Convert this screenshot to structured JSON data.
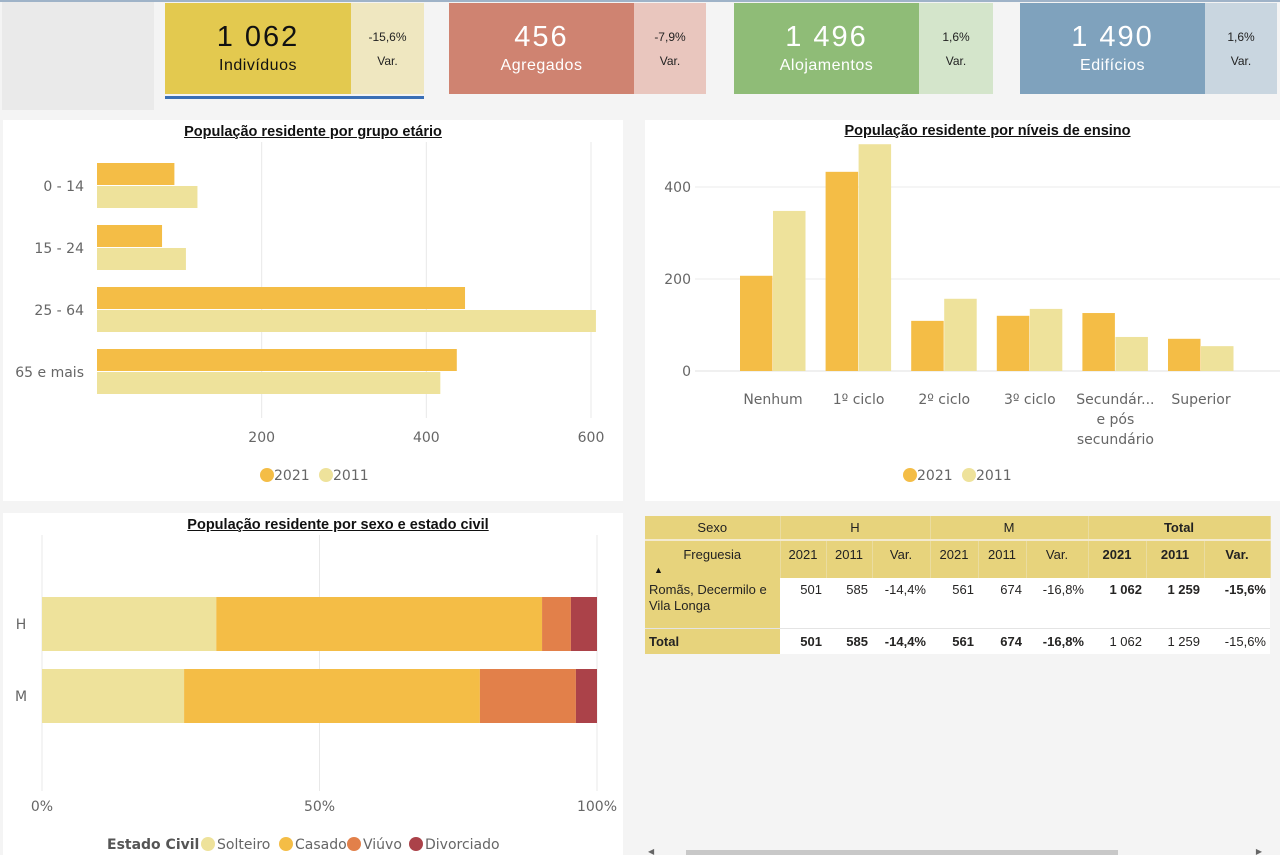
{
  "kpis": [
    {
      "id": "individuos",
      "value": "1 062",
      "label": "Indivíduos",
      "variation": "-15,6%",
      "variation_label": "Var."
    },
    {
      "id": "agregados",
      "value": "456",
      "label": "Agregados",
      "variation": "-7,9%",
      "variation_label": "Var."
    },
    {
      "id": "alojamentos",
      "value": "1 496",
      "label": "Alojamentos",
      "variation": "1,6%",
      "variation_label": "Var."
    },
    {
      "id": "edificios",
      "value": "1 490",
      "label": "Edifícios",
      "variation": "1,6%",
      "variation_label": "Var."
    }
  ],
  "colors": {
    "series_2021": "#f4bd46",
    "series_2011": "#eee29b",
    "solteiro": "#eee29b",
    "casado": "#f4bd46",
    "viuvo": "#e2804a",
    "divorciado": "#ab4249",
    "table_header": "#e7d37c",
    "selected_underline": "#3a6fb5"
  },
  "chart_data": [
    {
      "id": "age-chart",
      "type": "bar",
      "orientation": "horizontal",
      "title": "População residente por grupo etário",
      "categories": [
        "0 - 14",
        "15 - 24",
        "25 - 64",
        "65 e mais"
      ],
      "series": [
        {
          "name": "2021",
          "values": [
            94,
            79,
            447,
            437
          ]
        },
        {
          "name": "2011",
          "values": [
            122,
            108,
            606,
            417
          ]
        }
      ],
      "xlabel": "",
      "ylabel": "",
      "xlim": [
        0,
        600
      ],
      "xticks": [
        200,
        400,
        600
      ],
      "grid": true,
      "legend": "bottom-center"
    },
    {
      "id": "education-chart",
      "type": "bar",
      "orientation": "vertical",
      "title": "População residente por níveis de ensino",
      "categories": [
        "Nenhum",
        "1º ciclo",
        "2º ciclo",
        "3º ciclo",
        "Secundár... e pós secundário",
        "Superior"
      ],
      "category_lines": [
        [
          "Nenhum"
        ],
        [
          "1º ciclo"
        ],
        [
          "2º ciclo"
        ],
        [
          "3º ciclo"
        ],
        [
          "Secundár...",
          "e pós",
          "secundário"
        ],
        [
          "Superior"
        ]
      ],
      "series": [
        {
          "name": "2021",
          "values": [
            207,
            433,
            109,
            120,
            126,
            70
          ]
        },
        {
          "name": "2011",
          "values": [
            348,
            493,
            157,
            135,
            74,
            54
          ]
        }
      ],
      "xlabel": "",
      "ylabel": "",
      "ylim": [
        0,
        500
      ],
      "yticks": [
        0,
        200,
        400
      ],
      "grid": true,
      "legend": "bottom-center"
    },
    {
      "id": "marital-chart",
      "type": "bar",
      "orientation": "horizontal",
      "stacked": "100%",
      "title": "População residente por sexo e estado civil",
      "categories": [
        "H",
        "M"
      ],
      "series": [
        {
          "name": "Solteiro",
          "values": [
            31.4,
            25.6
          ]
        },
        {
          "name": "Casado",
          "values": [
            58.7,
            53.3
          ]
        },
        {
          "name": "Viúvo",
          "values": [
            5.2,
            17.3
          ]
        },
        {
          "name": "Divorciado",
          "values": [
            4.7,
            3.8
          ]
        }
      ],
      "xlim": [
        0,
        100
      ],
      "xticks": [
        "0%",
        "50%",
        "100%"
      ],
      "legend_title": "Estado Civil",
      "grid": true,
      "legend": "bottom-left"
    }
  ],
  "table": {
    "group_header": {
      "label": "Sexo",
      "groups": [
        "H",
        "M",
        "Total"
      ]
    },
    "row_header_label": "Freguesia",
    "sub_headers": [
      "2021",
      "2011",
      "Var."
    ],
    "rows": [
      {
        "name": "Romãs, Decermilo e Vila Longa",
        "values": [
          "501",
          "585",
          "-14,4%",
          "561",
          "674",
          "-16,8%",
          "1 062",
          "1 259",
          "-15,6%"
        ]
      }
    ],
    "total": {
      "name": "Total",
      "values": [
        "501",
        "585",
        "-14,4%",
        "561",
        "674",
        "-16,8%",
        "1 062",
        "1 259",
        "-15,6%"
      ]
    }
  },
  "icons": {
    "sort": "▲",
    "scroll_left": "◀",
    "scroll_right": "▶"
  }
}
